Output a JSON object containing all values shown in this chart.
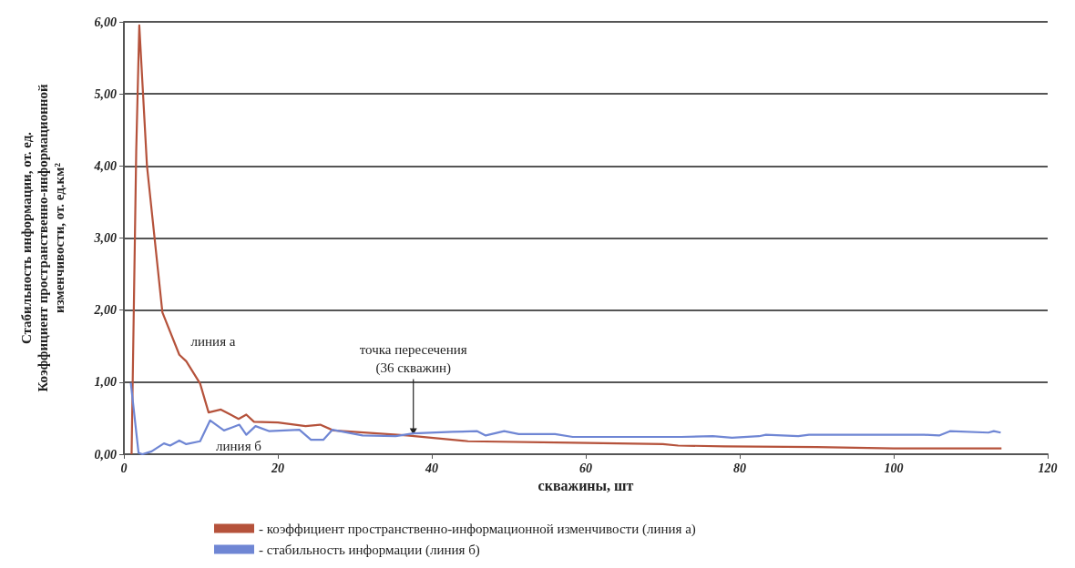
{
  "chart_data": {
    "type": "line",
    "xlabel": "скважины, шт",
    "ylabel": "Стабильность информации, от. ед.\nКоэффициент пространственно-информационной\nизменчивости, от. ед.км²",
    "xlim": [
      0,
      120
    ],
    "xticks": [
      0,
      20,
      40,
      60,
      80,
      100,
      120
    ],
    "ylim": [
      0,
      6
    ],
    "yticks": [
      {
        "value": 0,
        "label": "0,00"
      },
      {
        "value": 1,
        "label": "1,00"
      },
      {
        "value": 2,
        "label": "2,00"
      },
      {
        "value": 3,
        "label": "3,00"
      },
      {
        "value": 4,
        "label": "4,00"
      },
      {
        "value": 5,
        "label": "5,00"
      },
      {
        "value": 6,
        "label": "6,00"
      }
    ],
    "grid": "y",
    "legend": "bottom",
    "marker": "none",
    "series": [
      {
        "name": "- коэффициент пространственно-информационной изменчивости (линия а)",
        "color": "#b5523b",
        "x": [
          1,
          1.6,
          2,
          3,
          5,
          7.2,
          8.1,
          9.9,
          11,
          12.6,
          14.9,
          15.9,
          16.9,
          20,
          23.6,
          25.5,
          27.2,
          36.8,
          44.7,
          58.3,
          70,
          72,
          78,
          90,
          100,
          114
        ],
        "values": [
          0,
          4.2,
          5.95,
          4.0,
          1.97,
          1.38,
          1.29,
          0.98,
          0.58,
          0.62,
          0.49,
          0.55,
          0.45,
          0.44,
          0.39,
          0.41,
          0.33,
          0.26,
          0.18,
          0.16,
          0.14,
          0.12,
          0.11,
          0.1,
          0.08,
          0.08
        ]
      },
      {
        "name": "- стабильность информации (линия б)",
        "color": "#6f86d4",
        "x": [
          0.9,
          1.9,
          2.4,
          3.6,
          5.2,
          6,
          7.2,
          8.1,
          9.9,
          11.2,
          13,
          15,
          15.9,
          17.1,
          18.9,
          22.8,
          24.3,
          25.9,
          27.1,
          31,
          35.3,
          37.6,
          42.7,
          45.9,
          47,
          49.4,
          51.3,
          56,
          58.3,
          72.4,
          76.5,
          79,
          82.5,
          83.4,
          87.6,
          89,
          104,
          105.9,
          107.3,
          112.3,
          113,
          113.9
        ],
        "values": [
          0.99,
          0.02,
          0,
          0.04,
          0.15,
          0.12,
          0.19,
          0.14,
          0.18,
          0.47,
          0.33,
          0.41,
          0.27,
          0.39,
          0.32,
          0.34,
          0.2,
          0.2,
          0.34,
          0.26,
          0.25,
          0.29,
          0.31,
          0.32,
          0.26,
          0.32,
          0.28,
          0.28,
          0.24,
          0.24,
          0.25,
          0.23,
          0.25,
          0.27,
          0.25,
          0.27,
          0.27,
          0.26,
          0.32,
          0.3,
          0.32,
          0.3
        ]
      }
    ],
    "annotations": [
      "линия а",
      "линия б",
      {
        "text": "точка пересечения\n(36 скважин)",
        "x": 37.6,
        "y": 0.26
      }
    ]
  }
}
